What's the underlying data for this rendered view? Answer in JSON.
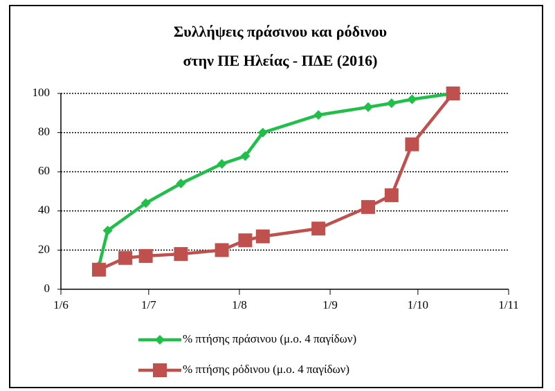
{
  "chart_data": {
    "type": "line",
    "title": [
      "Συλλήψεις πράσινου και ρόδινου",
      "στην ΠΕ Ηλείας - ΠΔΕ (2016)"
    ],
    "series": [
      {
        "name": "% πτήσης πράσινου (μ.ο. 4 παγίδων)",
        "color": "#1fbf4a",
        "marker": "diamond",
        "x": [
          "2016-06-14",
          "2016-06-17",
          "2016-06-30",
          "2016-07-12",
          "2016-07-26",
          "2016-08-03",
          "2016-08-09",
          "2016-08-28",
          "2016-09-14",
          "2016-09-22",
          "2016-09-29",
          "2016-10-13"
        ],
        "values": [
          12,
          30,
          44,
          54,
          64,
          68,
          80,
          89,
          93,
          95,
          97,
          100
        ]
      },
      {
        "name": "% πτήσης ρόδινου (μ.ο. 4 παγίδων)",
        "color": "#c0504d",
        "marker": "square",
        "x": [
          "2016-06-14",
          "2016-06-23",
          "2016-06-30",
          "2016-07-12",
          "2016-07-26",
          "2016-08-03",
          "2016-08-09",
          "2016-08-28",
          "2016-09-14",
          "2016-09-22",
          "2016-09-29",
          "2016-10-13"
        ],
        "values": [
          10,
          16,
          17,
          18,
          20,
          25,
          27,
          31,
          42,
          48,
          74,
          100
        ]
      }
    ],
    "xlim": [
      "2016-06-01",
      "2016-11-01"
    ],
    "xticks": [
      {
        "value": "2016-06-01",
        "label": "1/6"
      },
      {
        "value": "2016-07-01",
        "label": "1/7"
      },
      {
        "value": "2016-08-01",
        "label": "1/8"
      },
      {
        "value": "2016-09-01",
        "label": "1/9"
      },
      {
        "value": "2016-10-01",
        "label": "1/10"
      },
      {
        "value": "2016-11-01",
        "label": "1/11"
      }
    ],
    "ylim": [
      0,
      100
    ],
    "yticks": [
      0,
      20,
      40,
      60,
      80,
      100
    ],
    "grid": true,
    "legend": "bottom"
  }
}
